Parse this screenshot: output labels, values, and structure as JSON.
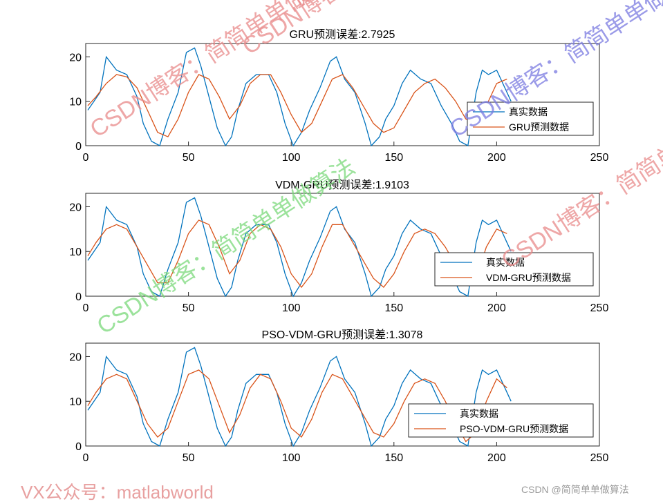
{
  "chart_data": [
    {
      "type": "line",
      "title": "GRU预测误差:2.7925",
      "xlim": [
        0,
        250
      ],
      "ylim": [
        0,
        23
      ],
      "xticks": [
        0,
        50,
        100,
        150,
        200,
        250
      ],
      "yticks": [
        0,
        10,
        20
      ],
      "legend_position": "bottom-right",
      "series": [
        {
          "name": "真实数据",
          "color": "#0072BD",
          "x": [
            1,
            4,
            7,
            10,
            15,
            20,
            25,
            28,
            32,
            36,
            40,
            45,
            49,
            53,
            56,
            60,
            64,
            68,
            71,
            74,
            78,
            83,
            89,
            93,
            97,
            101,
            105,
            109,
            114,
            119,
            122,
            126,
            131,
            136,
            139,
            143,
            146,
            150,
            154,
            158,
            163,
            168,
            173,
            178,
            182,
            186,
            190,
            193,
            196,
            200,
            204,
            207
          ],
          "values": [
            8,
            10,
            12,
            20,
            17,
            16,
            11,
            5,
            1,
            0,
            6,
            12,
            21,
            22,
            18,
            11,
            4,
            0,
            2,
            8,
            14,
            16,
            16,
            12,
            5,
            0,
            3,
            8,
            13,
            19,
            20,
            15,
            12,
            5,
            0,
            2,
            6,
            9,
            14,
            17,
            15,
            14,
            9,
            5,
            1,
            0,
            12,
            17,
            16,
            17,
            13,
            10
          ]
        },
        {
          "name": "GRU预测数据",
          "color": "#D95319",
          "x": [
            1,
            5,
            10,
            15,
            20,
            25,
            30,
            35,
            40,
            45,
            50,
            55,
            60,
            65,
            70,
            75,
            80,
            85,
            90,
            95,
            100,
            105,
            110,
            115,
            120,
            125,
            130,
            135,
            140,
            145,
            150,
            155,
            160,
            165,
            170,
            175,
            180,
            185,
            190,
            195,
            200,
            205
          ],
          "values": [
            9,
            11,
            14,
            16,
            15.5,
            13,
            8,
            3,
            2,
            6,
            12,
            16,
            15,
            11,
            6,
            9,
            14,
            16,
            16,
            12,
            7,
            3,
            5,
            10,
            15,
            16,
            13,
            9,
            5,
            3,
            4,
            8,
            12,
            14,
            15,
            13,
            10,
            6,
            5,
            9,
            14,
            15
          ]
        }
      ]
    },
    {
      "type": "line",
      "title": "VDM-GRU预测误差:1.9103",
      "xlim": [
        0,
        250
      ],
      "ylim": [
        0,
        23
      ],
      "xticks": [
        0,
        50,
        100,
        150,
        200,
        250
      ],
      "yticks": [
        0,
        10,
        20
      ],
      "legend_position": "bottom-right",
      "series": [
        {
          "name": "真实数据",
          "color": "#0072BD",
          "x": [
            1,
            4,
            7,
            10,
            15,
            20,
            25,
            28,
            32,
            36,
            40,
            45,
            49,
            53,
            56,
            60,
            64,
            68,
            71,
            74,
            78,
            83,
            89,
            93,
            97,
            101,
            105,
            109,
            114,
            119,
            122,
            126,
            131,
            136,
            139,
            143,
            146,
            150,
            154,
            158,
            163,
            168,
            173,
            178,
            182,
            186,
            190,
            193,
            196,
            200,
            204,
            207
          ],
          "values": [
            8,
            10,
            12,
            20,
            17,
            16,
            11,
            5,
            1,
            0,
            6,
            12,
            21,
            22,
            18,
            11,
            4,
            0,
            2,
            8,
            14,
            16,
            16,
            12,
            5,
            0,
            3,
            8,
            13,
            19,
            20,
            15,
            12,
            5,
            0,
            2,
            6,
            9,
            14,
            17,
            15,
            14,
            9,
            5,
            1,
            0,
            12,
            17,
            16,
            17,
            13,
            10
          ]
        },
        {
          "name": "VDM-GRU预测数据",
          "color": "#D95319",
          "x": [
            1,
            5,
            10,
            15,
            20,
            25,
            30,
            35,
            40,
            45,
            50,
            55,
            60,
            65,
            70,
            75,
            80,
            85,
            90,
            95,
            100,
            105,
            110,
            115,
            120,
            125,
            130,
            135,
            140,
            145,
            150,
            155,
            160,
            165,
            170,
            175,
            180,
            185,
            190,
            195,
            200,
            205
          ],
          "values": [
            9,
            12,
            15,
            16,
            15,
            11,
            7,
            3,
            3,
            8,
            14,
            17,
            16,
            11,
            5,
            8,
            14,
            16,
            15,
            11,
            5,
            2,
            5,
            11,
            16,
            16,
            12,
            8,
            4,
            2,
            5,
            10,
            14,
            15,
            14,
            11,
            7,
            3,
            4,
            11,
            15,
            14
          ]
        }
      ]
    },
    {
      "type": "line",
      "title": "PSO-VDM-GRU预测误差:1.3078",
      "xlim": [
        0,
        250
      ],
      "ylim": [
        0,
        23
      ],
      "xticks": [
        0,
        50,
        100,
        150,
        200,
        250
      ],
      "yticks": [
        0,
        10,
        20
      ],
      "legend_position": "bottom-right",
      "series": [
        {
          "name": "真实数据",
          "color": "#0072BD",
          "x": [
            1,
            4,
            7,
            10,
            15,
            20,
            25,
            28,
            32,
            36,
            40,
            45,
            49,
            53,
            56,
            60,
            64,
            68,
            71,
            74,
            78,
            83,
            89,
            93,
            97,
            101,
            105,
            109,
            114,
            119,
            122,
            126,
            131,
            136,
            139,
            143,
            146,
            150,
            154,
            158,
            163,
            168,
            173,
            178,
            182,
            186,
            190,
            193,
            196,
            200,
            204,
            207
          ],
          "values": [
            8,
            10,
            12,
            20,
            17,
            16,
            11,
            5,
            1,
            0,
            6,
            12,
            21,
            22,
            18,
            11,
            4,
            0,
            2,
            8,
            14,
            16,
            16,
            12,
            5,
            0,
            3,
            8,
            13,
            19,
            20,
            15,
            12,
            5,
            0,
            2,
            6,
            9,
            14,
            17,
            15,
            14,
            9,
            5,
            1,
            0,
            12,
            17,
            16,
            17,
            13,
            10
          ]
        },
        {
          "name": "PSO-VDM-GRU预测数据",
          "color": "#D95319",
          "x": [
            1,
            5,
            10,
            15,
            20,
            25,
            30,
            35,
            40,
            45,
            50,
            55,
            60,
            65,
            70,
            75,
            80,
            85,
            90,
            95,
            100,
            105,
            110,
            115,
            120,
            125,
            130,
            135,
            140,
            145,
            150,
            155,
            160,
            165,
            170,
            175,
            180,
            185,
            190,
            195,
            200,
            205
          ],
          "values": [
            9,
            12,
            15,
            16,
            15,
            10,
            5,
            2,
            4,
            10,
            16,
            17,
            15,
            9,
            3,
            7,
            13,
            16,
            15,
            10,
            4,
            2,
            6,
            12,
            16,
            15,
            11,
            7,
            3,
            2,
            5,
            10,
            14,
            15,
            14,
            10,
            5,
            1,
            3,
            10,
            15,
            13
          ]
        }
      ]
    }
  ],
  "watermarks": {
    "csdn_1": "CSDN博客：简简单单做算法",
    "csdn_2": "CSDN博客：简简单单做算法",
    "csdn_3": "CSDN博客：简简单单做算法",
    "csdn_4": "CSDN博客：简简单单做算法",
    "csdn_5": "CSDN博客：简简单单做算法",
    "colors": {
      "red": "#e88a8a",
      "blue": "#7a7ae0",
      "green": "#7ad87a"
    }
  },
  "footer": {
    "left": "VX公众号：matlabworld",
    "right": "CSDN @简简单单做算法"
  }
}
